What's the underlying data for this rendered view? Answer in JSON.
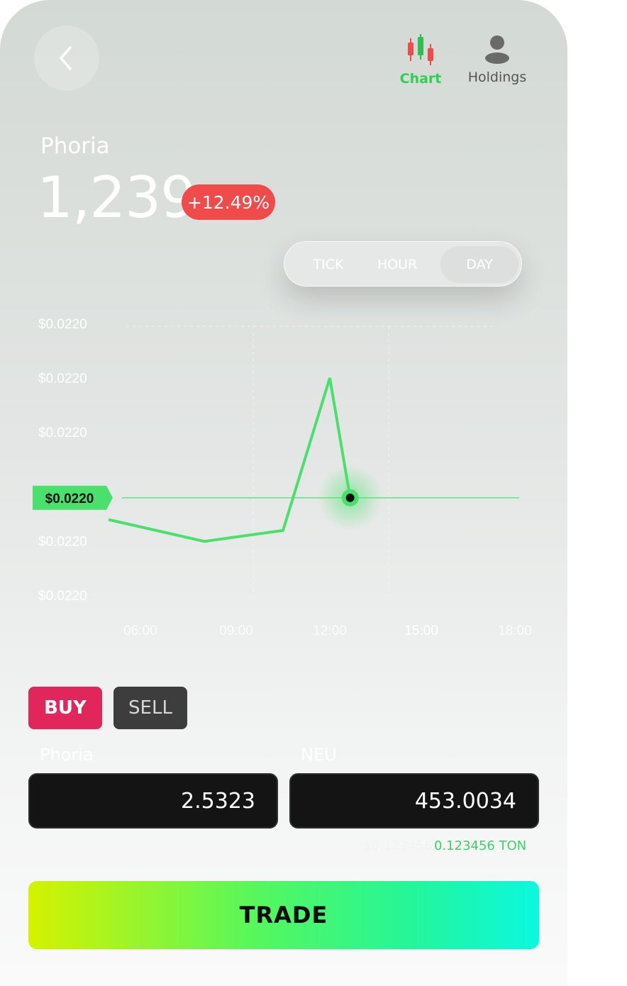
{
  "header": {
    "back_icon": "chevron-left-icon",
    "nav": [
      {
        "label": "Chart",
        "icon": "candlestick-icon",
        "active": true
      },
      {
        "label": "Holdings",
        "icon": "user-icon",
        "active": false
      }
    ]
  },
  "asset": {
    "name": "Phoria",
    "price": "1,239",
    "change": "+12.49%"
  },
  "timeframe": {
    "options": [
      "TICK",
      "HOUR",
      "DAY"
    ],
    "selected": "DAY"
  },
  "chart_data": {
    "type": "line",
    "y_tick_labels": [
      "$0.0220",
      "$0.0220",
      "$0.0220",
      "$0.0220",
      "$0.0220",
      "$0.0220"
    ],
    "x_tick_labels": [
      "06:00",
      "09:00",
      "12:00",
      "15:00",
      "18:00"
    ],
    "current_price_label": "$0.0220",
    "x": [
      "05:00",
      "08:00",
      "10:30",
      "12:00",
      "12:40"
    ],
    "values": [
      0.4,
      0.2,
      0.3,
      1.7,
      0.6
    ],
    "current_value": 0.6,
    "ylim": [
      -0.3,
      2.2
    ],
    "grid": true,
    "line_color": "#4ae06c"
  },
  "order": {
    "buy_label": "BUY",
    "sell_label": "SELL",
    "fields": [
      {
        "label": "Phoria",
        "value": "2.5323"
      },
      {
        "label": "NEU",
        "value": "453.0034"
      }
    ],
    "fee_muted": "$0.123456",
    "fee_ton": "0.123456 TON",
    "trade_label": "TRADE"
  },
  "colors": {
    "active_green": "#2fcf55",
    "badge_red": "#ef4b4b",
    "buy_pink": "#e0265a"
  }
}
